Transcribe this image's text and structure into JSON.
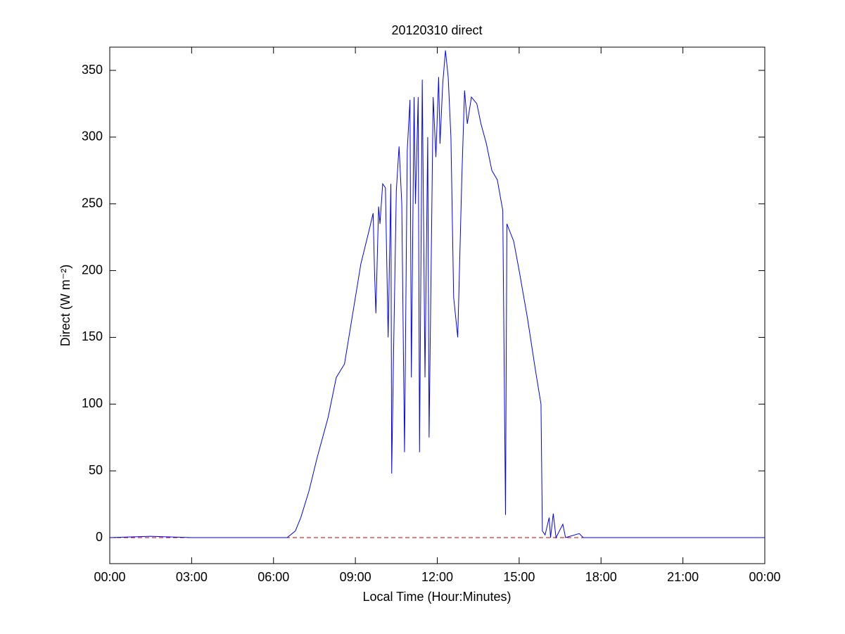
{
  "chart_data": {
    "type": "line",
    "title": "20120310 direct",
    "x_label": "Local Time (Hour:Minutes)",
    "y_label": "Direct (W m⁻²)",
    "x": [
      0,
      1.5,
      3,
      6,
      6.5,
      6.8,
      7.0,
      7.3,
      7.6,
      8.0,
      8.3,
      8.6,
      8.8,
      9.0,
      9.2,
      9.5,
      9.65,
      9.7,
      9.75,
      9.85,
      9.9,
      10.0,
      10.1,
      10.2,
      10.3,
      10.33,
      10.4,
      10.5,
      10.6,
      10.7,
      10.8,
      10.9,
      11.0,
      11.05,
      11.15,
      11.2,
      11.3,
      11.35,
      11.45,
      11.55,
      11.65,
      11.7,
      11.85,
      11.95,
      12.05,
      12.1,
      12.2,
      12.3,
      12.4,
      12.5,
      12.6,
      12.75,
      12.9,
      13.0,
      13.1,
      13.25,
      13.45,
      13.6,
      13.8,
      14.0,
      14.2,
      14.4,
      14.5,
      14.55,
      14.8,
      15.0,
      15.3,
      15.6,
      15.8,
      15.85,
      15.95,
      16.1,
      16.15,
      16.25,
      16.35,
      16.6,
      16.7,
      17.2,
      17.35,
      18,
      21,
      24
    ],
    "series": [
      {
        "color": "#0000ff",
        "values": [
          0,
          1,
          0,
          0,
          0,
          5,
          15,
          35,
          60,
          90,
          120,
          130,
          155,
          180,
          205,
          230,
          243,
          200,
          168,
          248,
          235,
          265,
          262,
          150,
          265,
          48,
          140,
          260,
          293,
          250,
          64,
          290,
          328,
          120,
          330,
          250,
          330,
          64,
          343,
          120,
          300,
          75,
          330,
          285,
          345,
          295,
          340,
          365,
          345,
          300,
          180,
          150,
          270,
          335,
          310,
          330,
          325,
          310,
          295,
          275,
          268,
          245,
          17,
          235,
          222,
          200,
          165,
          125,
          100,
          5,
          2,
          15,
          0,
          18,
          0,
          10,
          0,
          3,
          0,
          0,
          0,
          0
        ]
      }
    ],
    "reference_line": {
      "value": 0,
      "color": "#cc0000"
    },
    "xlim": [
      0,
      24
    ],
    "xticks": [
      {
        "value": 0,
        "label": "00:00"
      },
      {
        "value": 3,
        "label": "03:00"
      },
      {
        "value": 6,
        "label": "06:00"
      },
      {
        "value": 9,
        "label": "09:00"
      },
      {
        "value": 12,
        "label": "12:00"
      },
      {
        "value": 15,
        "label": "15:00"
      },
      {
        "value": 18,
        "label": "18:00"
      },
      {
        "value": 21,
        "label": "21:00"
      },
      {
        "value": 24,
        "label": "00:00"
      }
    ],
    "ylim": [
      -19.5,
      367.4
    ],
    "yticks": [
      0,
      50,
      100,
      150,
      200,
      250,
      300,
      350
    ],
    "grid": false
  }
}
